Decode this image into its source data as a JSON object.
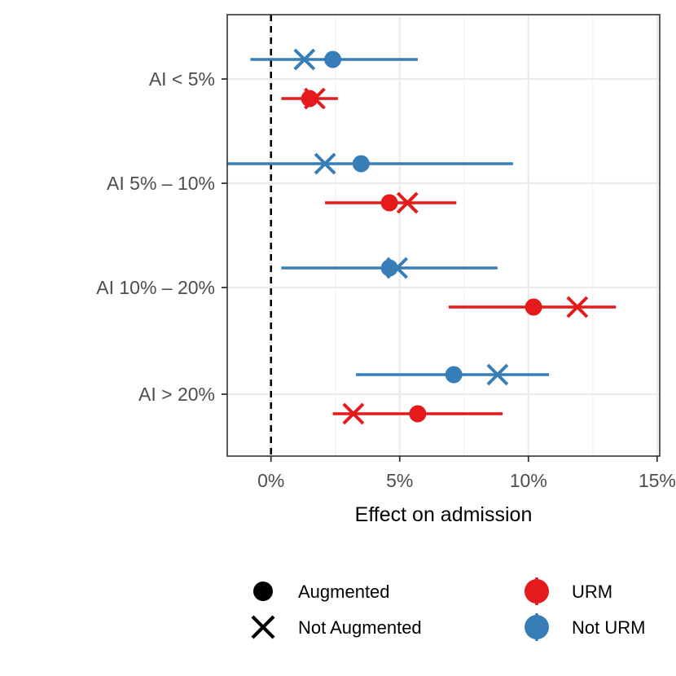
{
  "chart_data": {
    "type": "scatter",
    "subtype": "forest-plot",
    "xlabel": "Effect on admission",
    "ylabel": "",
    "xlim": [
      -1.7,
      15.1
    ],
    "xticks": [
      0,
      5,
      10,
      15
    ],
    "xtick_labels": [
      "0%",
      "5%",
      "10%",
      "15%"
    ],
    "x_units": "percent",
    "reference_line": {
      "x": 0,
      "style": "dashed"
    },
    "grid": true,
    "categories": [
      "AI < 5%",
      "AI 5% – 10%",
      "AI 10% – 20%",
      "AI > 20%"
    ],
    "series": [
      {
        "name": "Not URM",
        "color": "#377eb8",
        "augmented": [
          2.4,
          3.5,
          4.6,
          7.1
        ],
        "not_augmented": [
          1.3,
          2.1,
          4.9,
          8.8
        ],
        "ci_low": [
          -0.8,
          -1.7,
          0.4,
          3.3
        ],
        "ci_high": [
          5.7,
          9.4,
          8.8,
          10.8
        ]
      },
      {
        "name": "URM",
        "color": "#e41a1c",
        "augmented": [
          1.5,
          4.6,
          10.2,
          5.7
        ],
        "not_augmented": [
          1.7,
          5.3,
          11.9,
          3.2
        ],
        "ci_low": [
          0.4,
          2.1,
          6.9,
          2.4
        ],
        "ci_high": [
          2.6,
          7.2,
          13.4,
          9.0
        ]
      }
    ],
    "legend": {
      "position": "bottom",
      "shape": {
        "items": [
          {
            "label": "Augmented",
            "marker": "circle"
          },
          {
            "label": "Not Augmented",
            "marker": "cross"
          }
        ]
      },
      "color": {
        "items": [
          {
            "label": "URM",
            "color": "#e41a1c"
          },
          {
            "label": "Not URM",
            "color": "#377eb8"
          }
        ]
      }
    }
  }
}
